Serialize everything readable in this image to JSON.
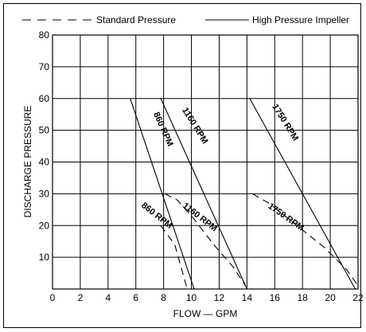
{
  "chart_data": {
    "type": "line",
    "title": "",
    "xlabel": "FLOW — GPM",
    "ylabel": "DISCHARGE PRESSURE",
    "xlim": [
      0,
      22
    ],
    "ylim": [
      0,
      80
    ],
    "xticks": [
      0,
      2,
      4,
      6,
      8,
      10,
      12,
      14,
      16,
      18,
      20,
      22
    ],
    "yticks": [
      10,
      20,
      30,
      40,
      50,
      60,
      70,
      80
    ],
    "grid": true,
    "legend_position": "top",
    "legend": [
      {
        "label": "Standard Pressure",
        "style": "dashed"
      },
      {
        "label": "High Pressure Impeller",
        "style": "solid"
      }
    ],
    "series": [
      {
        "group": "High Pressure Impeller",
        "label": "860 RPM",
        "x": [
          5.6,
          10.2
        ],
        "y": [
          60,
          0
        ]
      },
      {
        "group": "High Pressure Impeller",
        "label": "1160 RPM",
        "x": [
          7.8,
          14.0
        ],
        "y": [
          60,
          0
        ]
      },
      {
        "group": "High Pressure Impeller",
        "label": "1750 RPM",
        "x": [
          14.2,
          21.8
        ],
        "y": [
          60,
          0
        ]
      },
      {
        "group": "Standard Pressure",
        "label": "860 RPM",
        "x": [
          7.8,
          8.8,
          9.7
        ],
        "y": [
          20,
          14,
          0
        ]
      },
      {
        "group": "Standard Pressure",
        "label": "1160 RPM",
        "x": [
          8.1,
          9.0,
          10.2,
          11.6,
          13.0,
          13.9
        ],
        "y": [
          30,
          28,
          22,
          14,
          7,
          1
        ]
      },
      {
        "group": "Standard Pressure",
        "label": "1750 RPM",
        "x": [
          14.4,
          15.6,
          17.6,
          19.6,
          21.2,
          22.0
        ],
        "y": [
          30,
          27,
          20,
          13,
          6,
          1
        ]
      }
    ],
    "curve_labels": [
      {
        "text": "860 RPM",
        "x": 7.8,
        "y": 50
      },
      {
        "text": "1160 RPM",
        "x": 10.1,
        "y": 51
      },
      {
        "text": "1750 RPM",
        "x": 16.6,
        "y": 52
      },
      {
        "text": "860 RPM",
        "x": 7.4,
        "y": 22.5
      },
      {
        "text": "1160 RPM",
        "x": 10.5,
        "y": 22
      },
      {
        "text": "1750 RPM",
        "x": 16.7,
        "y": 22
      }
    ]
  }
}
